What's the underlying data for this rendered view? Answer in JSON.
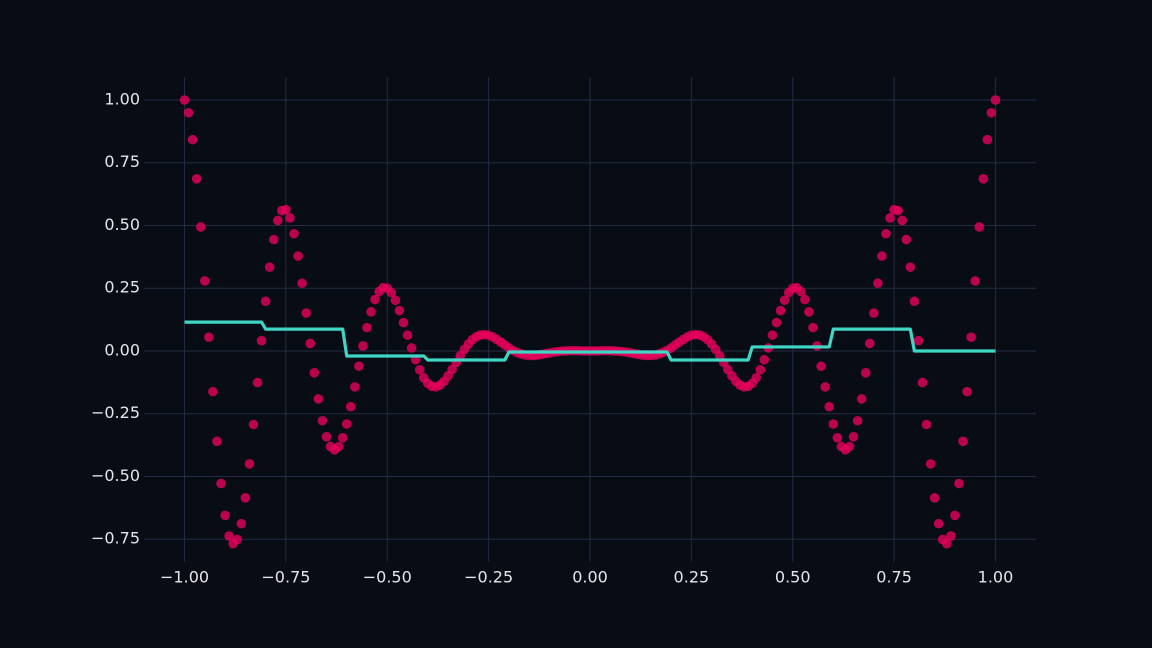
{
  "chart_data": {
    "type": "scatter",
    "xlim": [
      -1.1,
      1.1
    ],
    "ylim": [
      -0.84,
      1.09
    ],
    "grid": true,
    "xticks": [
      {
        "value": -1,
        "label": "−1.00"
      },
      {
        "value": -0.75,
        "label": "−0.75"
      },
      {
        "value": -0.5,
        "label": "−0.50"
      },
      {
        "value": -0.25,
        "label": "−0.25"
      },
      {
        "value": 0,
        "label": "0.00"
      },
      0.25,
      {
        "value": 0.5,
        "label": "0.50"
      },
      0.75,
      {
        "value": 1,
        "label": "1.00"
      }
    ],
    "yticks": [
      {
        "value": -0.75,
        "label": "−0.75"
      },
      {
        "value": -0.5,
        "label": "−0.50"
      },
      {
        "value": -0.25,
        "label": "−0.25"
      },
      {
        "value": 0,
        "label": "0.00"
      },
      0.25,
      {
        "value": 0.5,
        "label": "0.50"
      },
      0.75,
      {
        "value": 1,
        "label": "1.00"
      }
    ],
    "series": [
      {
        "type": "scatter",
        "color": "#e8005c",
        "x": [
          -1,
          -0.99,
          -0.98,
          -0.97,
          -0.96,
          -0.95,
          -0.94,
          -0.93,
          -0.92,
          -0.91,
          -0.9,
          -0.89,
          -0.88,
          -0.87,
          -0.86,
          -0.85,
          -0.84,
          -0.83,
          -0.82,
          -0.81,
          -0.8,
          -0.79,
          -0.78,
          -0.77,
          -0.76,
          -0.75,
          -0.74,
          -0.73,
          -0.72,
          -0.71,
          -0.7,
          -0.69,
          -0.68,
          -0.67,
          -0.66,
          -0.65,
          -0.64,
          -0.63,
          -0.62,
          -0.61,
          -0.6,
          -0.59,
          -0.58,
          -0.57,
          -0.56,
          -0.55,
          -0.54,
          -0.53,
          -0.52,
          -0.51,
          -0.5,
          -0.49,
          -0.48,
          -0.47,
          -0.46,
          -0.45,
          -0.44,
          -0.43,
          -0.42,
          -0.41,
          -0.4,
          -0.39,
          -0.38,
          -0.37,
          -0.36,
          -0.35,
          -0.34,
          -0.33,
          -0.32,
          -0.31,
          -0.3,
          -0.29,
          -0.28,
          -0.27,
          -0.26,
          -0.25,
          -0.24,
          -0.23,
          -0.22,
          -0.21,
          -0.2,
          -0.19,
          -0.18,
          -0.17,
          -0.16,
          -0.15,
          -0.14,
          -0.13,
          -0.12,
          -0.11,
          -0.1,
          -0.09,
          -0.08,
          -0.07,
          -0.06,
          -0.05,
          -0.04,
          -0.03,
          -0.02,
          -0.01,
          0,
          0.01,
          0.02,
          0.03,
          0.04,
          0.05,
          0.06,
          0.07,
          0.08,
          0.09,
          0.1,
          0.11,
          0.12,
          0.13,
          0.14,
          0.15,
          0.16,
          0.17,
          0.18,
          0.19,
          0.2,
          0.21,
          0.22,
          0.23,
          0.24,
          0.25,
          0.26,
          0.27,
          0.28,
          0.29,
          0.3,
          0.31,
          0.32,
          0.33,
          0.34,
          0.35,
          0.36,
          0.37,
          0.38,
          0.39,
          0.4,
          0.41,
          0.42,
          0.43,
          0.44,
          0.45,
          0.46,
          0.47,
          0.48,
          0.49,
          0.5,
          0.51,
          0.52,
          0.53,
          0.54,
          0.55,
          0.56,
          0.57,
          0.58,
          0.59,
          0.6,
          0.61,
          0.62,
          0.63,
          0.64,
          0.65,
          0.66,
          0.67,
          0.68,
          0.69,
          0.7,
          0.71,
          0.72,
          0.73,
          0.74,
          0.75,
          0.76,
          0.77,
          0.78,
          0.79,
          0.8,
          0.81,
          0.82,
          0.83,
          0.84,
          0.85,
          0.86,
          0.87,
          0.88,
          0.89,
          0.9,
          0.91,
          0.92,
          0.93,
          0.94,
          0.95,
          0.96,
          0.97,
          0.98,
          0.99,
          1
        ],
        "values": [
          1,
          0.949,
          0.842,
          0.686,
          0.494,
          0.279,
          0.055,
          -0.162,
          -0.36,
          -0.528,
          -0.655,
          -0.737,
          -0.768,
          -0.751,
          -0.688,
          -0.585,
          -0.45,
          -0.293,
          -0.126,
          0.041,
          0.198,
          0.334,
          0.444,
          0.52,
          0.559,
          0.563,
          0.53,
          0.467,
          0.378,
          0.27,
          0.151,
          0.03,
          -0.087,
          -0.191,
          -0.278,
          -0.342,
          -0.381,
          -0.394,
          -0.381,
          -0.346,
          -0.291,
          -0.222,
          -0.143,
          -0.061,
          0.02,
          0.093,
          0.156,
          0.205,
          0.237,
          0.252,
          0.25,
          0.233,
          0.202,
          0.161,
          0.113,
          0.063,
          0.012,
          -0.035,
          -0.075,
          -0.107,
          -0.129,
          -0.141,
          -0.143,
          -0.136,
          -0.121,
          -0.099,
          -0.074,
          -0.046,
          -0.019,
          0.006,
          0.028,
          0.045,
          0.057,
          0.064,
          0.065,
          0.063,
          0.056,
          0.046,
          0.035,
          0.024,
          0.012,
          0.002,
          -0.006,
          -0.012,
          -0.016,
          -0.018,
          -0.018,
          -0.017,
          -0.014,
          -0.011,
          -0.008,
          -0.005,
          -0.003,
          -0.001,
          0,
          0.001,
          0.001,
          0.001,
          0,
          0,
          0,
          0,
          0,
          0.001,
          0.001,
          0.001,
          0,
          -0.001,
          -0.003,
          -0.005,
          -0.008,
          -0.011,
          -0.014,
          -0.017,
          -0.018,
          -0.018,
          -0.016,
          -0.012,
          -0.006,
          0.002,
          0.012,
          0.024,
          0.035,
          0.046,
          0.056,
          0.063,
          0.065,
          0.064,
          0.057,
          0.045,
          0.028,
          0.006,
          -0.019,
          -0.046,
          -0.074,
          -0.099,
          -0.121,
          -0.136,
          -0.143,
          -0.141,
          -0.129,
          -0.107,
          -0.075,
          -0.035,
          0.012,
          0.063,
          0.113,
          0.161,
          0.202,
          0.233,
          0.25,
          0.252,
          0.237,
          0.205,
          0.156,
          0.093,
          0.02,
          -0.061,
          -0.143,
          -0.222,
          -0.291,
          -0.346,
          -0.381,
          -0.394,
          -0.381,
          -0.342,
          -0.278,
          -0.191,
          -0.087,
          0.03,
          0.151,
          0.27,
          0.378,
          0.467,
          0.53,
          0.563,
          0.559,
          0.52,
          0.444,
          0.334,
          0.198,
          0.041,
          -0.126,
          -0.293,
          -0.45,
          -0.585,
          -0.688,
          -0.751,
          -0.768,
          -0.737,
          -0.655,
          -0.528,
          -0.36,
          -0.162,
          0.055,
          0.279,
          0.494,
          0.686,
          0.842,
          0.949,
          1
        ]
      },
      {
        "type": "line",
        "color": "#3fd6c6",
        "x": [
          -1,
          -0.81,
          -0.8,
          -0.61,
          -0.6,
          -0.41,
          -0.4,
          -0.21,
          -0.2,
          -0.01,
          0,
          0.19,
          0.2,
          0.39,
          0.4,
          0.59,
          0.6,
          0.79,
          0.8,
          1
        ],
        "values": [
          0.115,
          0.115,
          0.087,
          0.087,
          -0.02,
          -0.02,
          -0.036,
          -0.036,
          -0.004,
          -0.004,
          -0.004,
          -0.004,
          -0.036,
          -0.036,
          0.016,
          0.016,
          0.087,
          0.087,
          0,
          0
        ]
      }
    ]
  }
}
